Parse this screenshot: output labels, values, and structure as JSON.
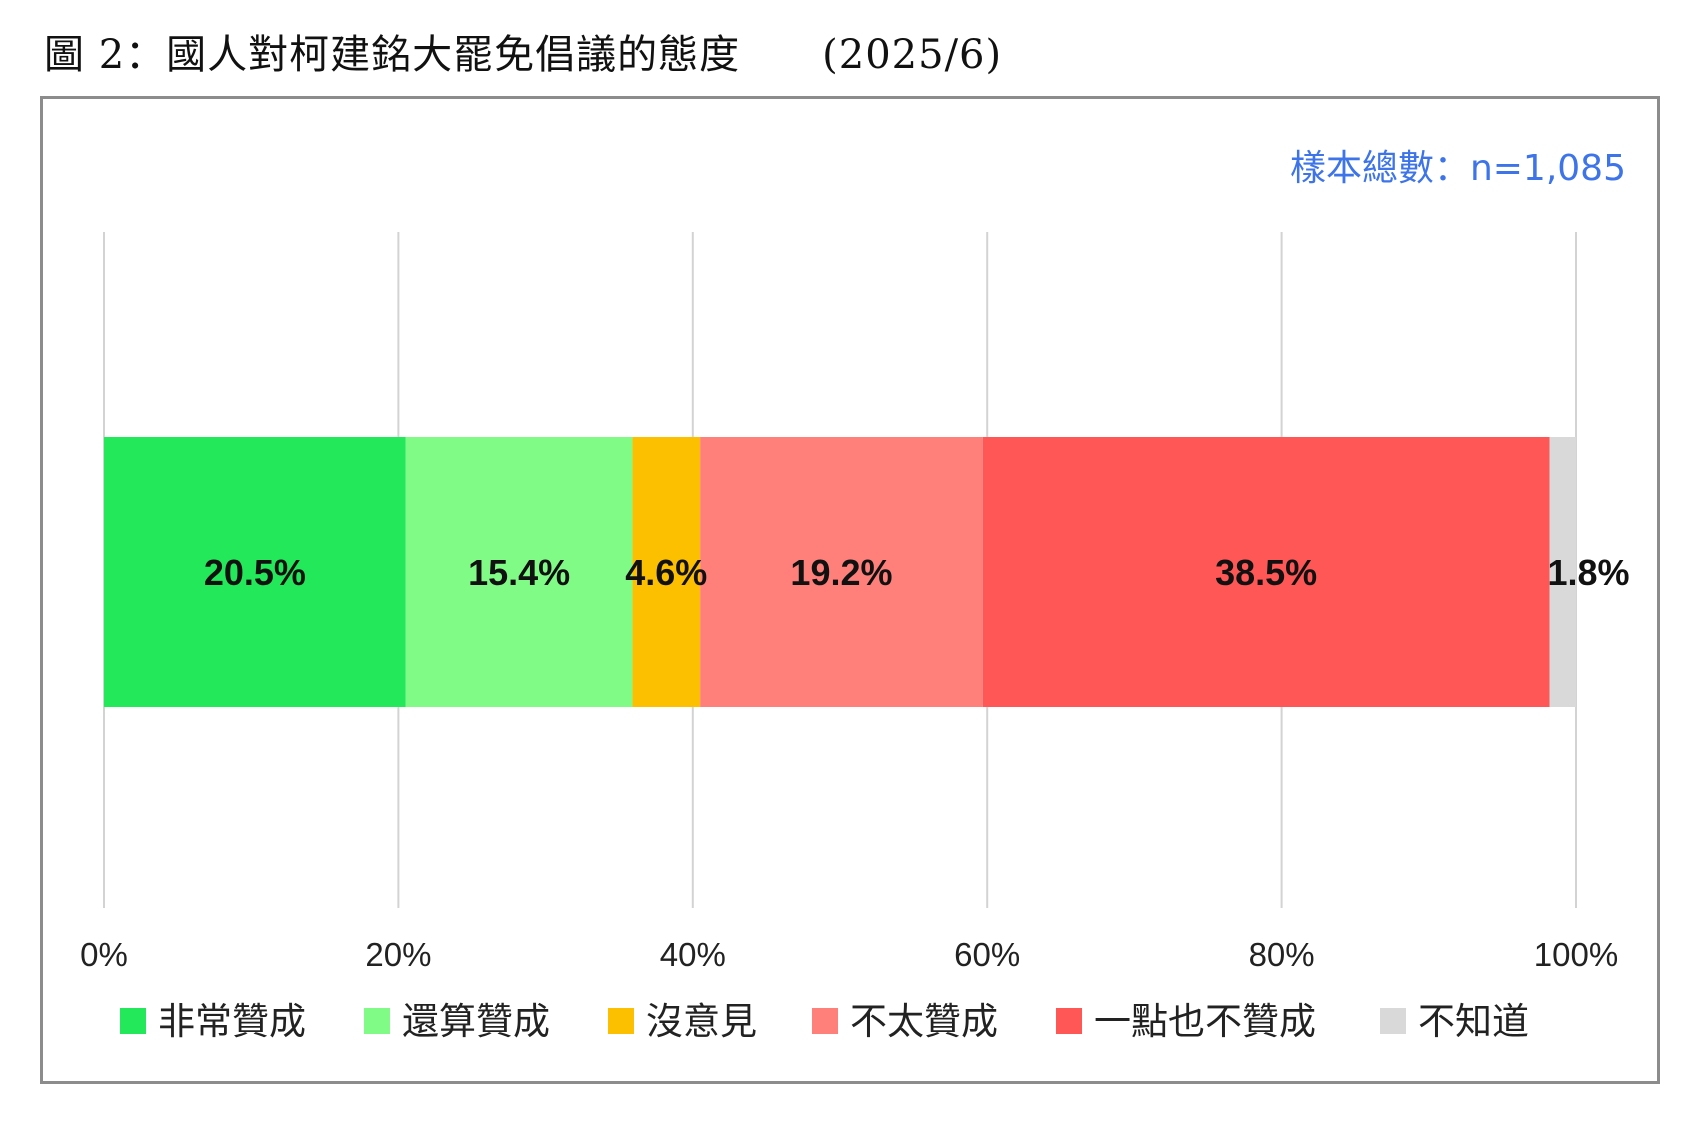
{
  "caption": "圖 2：國人對柯建銘大罷免倡議的態度　　(2025/6)",
  "chart_data": {
    "type": "bar",
    "orientation": "horizontal-stacked-100",
    "sample_note": "樣本總數：n=1,085",
    "x_ticks": [
      "0%",
      "20%",
      "40%",
      "60%",
      "80%",
      "100%"
    ],
    "xlim": [
      0,
      100
    ],
    "grid": true,
    "legend_position": "bottom",
    "series": [
      {
        "name": "非常贊成",
        "value": 20.5,
        "label": "20.5%",
        "color": "#22e85a"
      },
      {
        "name": "還算贊成",
        "value": 15.4,
        "label": "15.4%",
        "color": "#80fc86"
      },
      {
        "name": "沒意見",
        "value": 4.6,
        "label": "4.6%",
        "color": "#fdc000"
      },
      {
        "name": "不太贊成",
        "value": 19.2,
        "label": "19.2%",
        "color": "#ff7f7b"
      },
      {
        "name": "一點也不贊成",
        "value": 38.5,
        "label": "38.5%",
        "color": "#ff5656"
      },
      {
        "name": "不知道",
        "value": 1.8,
        "label": "1.8%",
        "color": "#d9d9d9"
      }
    ]
  }
}
